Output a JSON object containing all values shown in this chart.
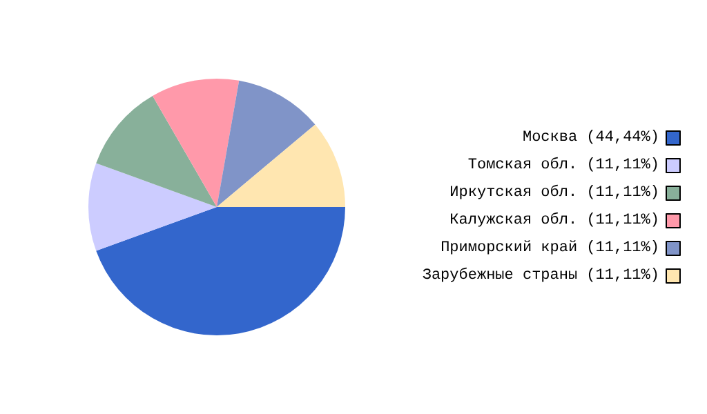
{
  "chart_data": {
    "type": "pie",
    "categories": [
      "Москва (44,44%)",
      "Томская обл. (11,11%)",
      "Иркутская обл. (11,11%)",
      "Калужская обл. (11,11%)",
      "Приморский край (11,11%)",
      "Зарубежные страны (11,11%)"
    ],
    "values": [
      44.44,
      11.11,
      11.11,
      11.11,
      11.11,
      11.11
    ],
    "colors": [
      "#3366cc",
      "#ccccff",
      "#88b09a",
      "#ff99aa",
      "#8094c8",
      "#ffe6b0"
    ],
    "legend": "right"
  }
}
